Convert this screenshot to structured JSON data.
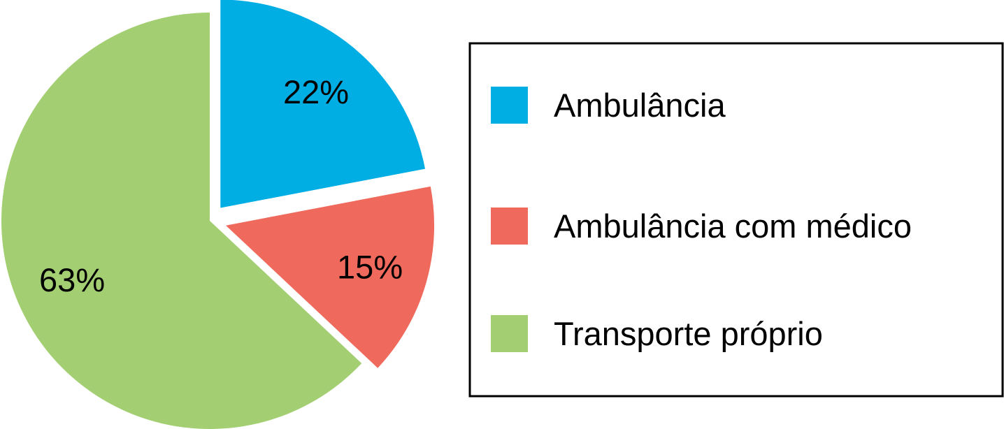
{
  "chart_data": {
    "type": "pie",
    "categories": [
      "Ambulância",
      "Ambulância com médico",
      "Transporte próprio"
    ],
    "values": [
      22,
      15,
      63
    ],
    "value_labels": [
      "22%",
      "15%",
      "63%"
    ],
    "colors": [
      "#00aee4",
      "#ef6a5c",
      "#a3cf72"
    ],
    "exploded": [
      true,
      true,
      false
    ],
    "legend": "right"
  }
}
